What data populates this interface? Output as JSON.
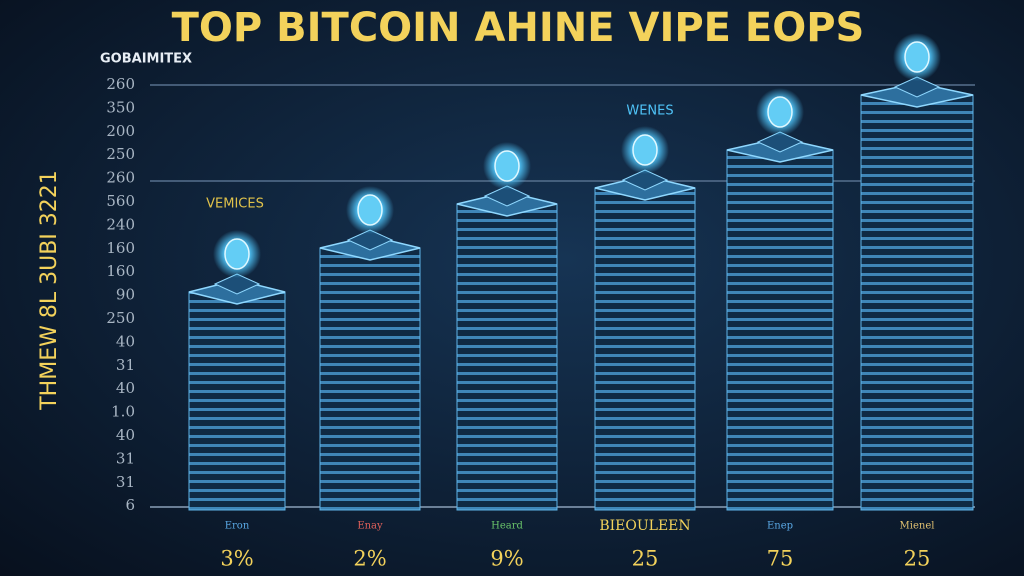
{
  "title": "TOP BITCOIN AHINE VIPE EOPS",
  "subtitle": "GOBAIMITEX",
  "y_axis_title": "THMEW 8L 3UBI 3221",
  "y_labels": [
    "260",
    "350",
    "200",
    "250",
    "260",
    "560",
    "240",
    "160",
    "160",
    "90",
    "250",
    "40",
    "31",
    "40",
    "1.0",
    "40",
    "31",
    "31",
    "6"
  ],
  "annotations": [
    "VEMICES",
    "WENES"
  ],
  "columns": [
    {
      "category": "Eron",
      "value_label": "3%"
    },
    {
      "category": "Enay",
      "value_label": "2%"
    },
    {
      "category": "Heard",
      "value_label": "9%"
    },
    {
      "category": "BIEOULEEN",
      "value_label": "25"
    },
    {
      "category": "Enep",
      "value_label": "75"
    },
    {
      "category": "Mienel",
      "value_label": "25"
    }
  ]
}
